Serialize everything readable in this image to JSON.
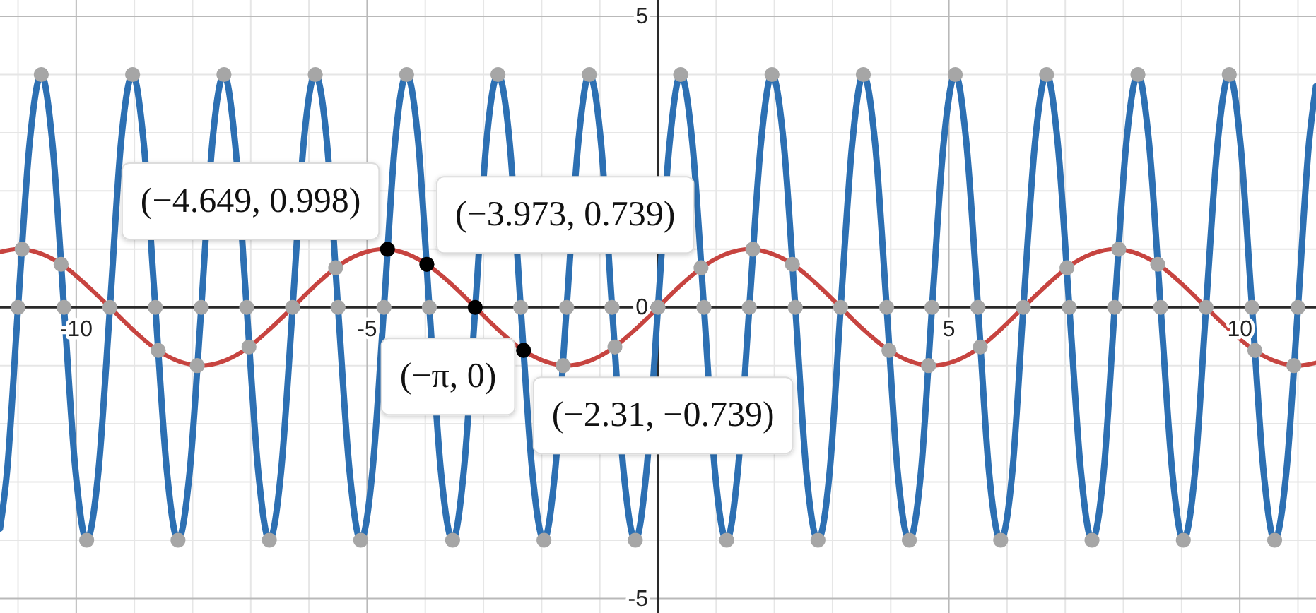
{
  "chart_data": {
    "type": "line",
    "xlim": [
      -11.31,
      11.31
    ],
    "ylim": [
      -5.25,
      5.28
    ],
    "xticks": [
      {
        "value": -11,
        "label": null
      },
      -10,
      {
        "value": -9,
        "label": null
      },
      {
        "value": -8,
        "label": null
      },
      {
        "value": -7,
        "label": null
      },
      {
        "value": -6,
        "label": null
      },
      -5,
      {
        "value": -4,
        "label": null
      },
      {
        "value": -3,
        "label": null
      },
      {
        "value": -2,
        "label": null
      },
      {
        "value": -1,
        "label": null
      },
      {
        "value": 0,
        "label": null
      },
      {
        "value": 1,
        "label": null
      },
      {
        "value": 2,
        "label": null
      },
      {
        "value": 3,
        "label": null
      },
      {
        "value": 4,
        "label": null
      },
      5,
      {
        "value": 6,
        "label": null
      },
      {
        "value": 7,
        "label": null
      },
      {
        "value": 8,
        "label": null
      },
      {
        "value": 9,
        "label": null
      },
      10,
      {
        "value": 11,
        "label": null
      }
    ],
    "yticks": [
      -5,
      {
        "value": -4,
        "label": null
      },
      {
        "value": -3,
        "label": null
      },
      {
        "value": -2,
        "label": null
      },
      {
        "value": -1,
        "label": null
      },
      0,
      {
        "value": 1,
        "label": null
      },
      {
        "value": 2,
        "label": null
      },
      {
        "value": 3,
        "label": null
      },
      {
        "value": 4,
        "label": null
      },
      5
    ],
    "grid": true,
    "series": [
      {
        "color": "#c74440",
        "x": [
          -11.31,
          -11.0,
          -10.6,
          -10.21,
          -9.82,
          -9.42,
          -9.03,
          -8.64,
          -8.25,
          -7.85,
          -7.46,
          -7.07,
          -6.68,
          -6.28,
          -5.89,
          -5.5,
          -5.11,
          -4.71,
          -4.32,
          -3.93,
          -3.53,
          -3.14,
          -2.75,
          -2.36,
          -1.96,
          -1.57,
          -1.18,
          -0.79,
          -0.39,
          0,
          0.39,
          0.79,
          1.18,
          1.57,
          1.96,
          2.36,
          2.75,
          3.14,
          3.53,
          3.93,
          4.32,
          4.71,
          5.11,
          5.5,
          5.89,
          6.28,
          6.68,
          7.07,
          7.46,
          7.85,
          8.25,
          8.64,
          9.03,
          9.42,
          9.82,
          10.21,
          10.6,
          11.0,
          11.31
        ],
        "values": [
          0.95,
          1,
          0.92,
          0.71,
          0.38,
          0,
          -0.38,
          -0.71,
          -0.92,
          -1,
          -0.92,
          -0.71,
          -0.38,
          0,
          0.38,
          0.71,
          0.92,
          1,
          0.92,
          0.71,
          0.38,
          0,
          -0.38,
          -0.71,
          -0.92,
          -1,
          -0.92,
          -0.71,
          -0.38,
          0,
          0.38,
          0.71,
          0.92,
          1,
          0.92,
          0.71,
          0.38,
          0,
          -0.38,
          -0.71,
          -0.92,
          -1,
          -0.92,
          -0.71,
          -0.38,
          0,
          0.38,
          0.71,
          0.92,
          1,
          0.92,
          0.71,
          0.38,
          0,
          -0.38,
          -0.71,
          -0.92,
          -1,
          -0.95
        ]
      },
      {
        "color": "#2d70b3",
        "x": [
          -11.31,
          -11.19,
          -11.0,
          -10.8,
          -10.6,
          -10.41,
          -10.21,
          -10.01,
          -9.82,
          -9.62,
          -9.42,
          -9.23,
          -9.03,
          -8.84,
          -8.64,
          -8.44,
          -8.25,
          -8.05,
          -7.85,
          -7.66,
          -7.46,
          -7.27,
          -7.07,
          -6.87,
          -6.68,
          -6.48,
          -6.28,
          -6.09,
          -5.89,
          -5.69,
          -5.5,
          -5.3,
          -5.11,
          -4.91,
          -4.71,
          -4.52,
          -4.32,
          -4.12,
          -3.93,
          -3.73,
          -3.53,
          -3.34,
          -3.14,
          -2.95,
          -2.75,
          -2.55,
          -2.36,
          -2.16,
          -1.96,
          -1.77,
          -1.57,
          -1.37,
          -1.18,
          -0.98,
          -0.79,
          -0.59,
          -0.39,
          -0.2,
          0,
          0.2,
          0.39,
          0.59,
          0.79,
          0.98,
          1.18,
          1.37,
          1.57,
          1.77,
          1.96,
          2.16,
          2.36,
          2.55,
          2.75,
          2.95,
          3.14,
          3.34,
          3.53,
          3.73,
          3.93,
          4.12,
          4.32,
          4.52,
          4.71,
          4.91,
          5.11,
          5.3,
          5.5,
          5.69,
          5.89,
          6.09,
          6.28,
          6.48,
          6.68,
          6.87,
          7.07,
          7.27,
          7.46,
          7.66,
          7.85,
          8.05,
          8.25,
          8.44,
          8.64,
          8.84,
          9.03,
          9.23,
          9.42,
          9.62,
          9.82,
          10.01,
          10.21,
          10.41,
          10.6,
          10.8,
          11.0,
          11.19,
          11.31
        ],
        "values": [
          -3.8,
          -2.83,
          0,
          2.83,
          4,
          2.83,
          0,
          -2.83,
          -4,
          -2.83,
          0,
          2.83,
          4,
          2.83,
          0,
          -2.83,
          -4,
          -2.83,
          0,
          2.83,
          4,
          2.83,
          0,
          -2.83,
          -4,
          -2.83,
          0,
          2.83,
          4,
          2.83,
          0,
          -2.83,
          -4,
          -2.83,
          0,
          2.83,
          4,
          2.83,
          0,
          -2.83,
          -4,
          -2.83,
          0,
          2.83,
          4,
          2.83,
          0,
          -2.83,
          -4,
          -2.83,
          0,
          2.83,
          4,
          2.83,
          0,
          -2.83,
          -4,
          -2.83,
          0,
          2.83,
          4,
          2.83,
          0,
          -2.83,
          -4,
          -2.83,
          0,
          2.83,
          4,
          2.83,
          0,
          -2.83,
          -4,
          -2.83,
          0,
          2.83,
          4,
          2.83,
          0,
          -2.83,
          -4,
          -2.83,
          0,
          2.83,
          4,
          2.83,
          0,
          -2.83,
          -4,
          -2.83,
          0,
          2.83,
          4,
          2.83,
          0,
          -2.83,
          -4,
          -2.83,
          0,
          2.83,
          4,
          2.83,
          0,
          -2.83,
          -4,
          -2.83,
          0,
          2.83,
          4,
          2.83,
          0,
          -2.83,
          -4,
          -2.83,
          0,
          2.83,
          3.8
        ]
      },
      {
        "type": "scatter",
        "marker": "circle",
        "color": "#a6a6a6",
        "x": [
          -11.0,
          -10.93,
          -10.6,
          -10.26,
          -10.21,
          -9.82,
          -9.42,
          -9.03,
          -8.64,
          -8.59,
          -8.25,
          -7.92,
          -7.85,
          -7.46,
          -7.07,
          -7.03,
          -6.68,
          -6.28,
          -5.89,
          -5.54,
          -5.5,
          -5.11,
          -4.71,
          -4.32,
          -3.93,
          -3.53,
          -2.75,
          -2.36,
          -1.96,
          -1.63,
          -1.57,
          -1.18,
          -0.79,
          -0.74,
          -0.39,
          0,
          0.39,
          0.74,
          0.79,
          1.18,
          1.57,
          1.63,
          1.96,
          2.31,
          2.36,
          2.75,
          3.14,
          3.53,
          3.93,
          3.97,
          4.32,
          4.65,
          4.71,
          5.11,
          5.5,
          5.54,
          5.89,
          6.28,
          6.68,
          7.03,
          7.07,
          7.46,
          7.85,
          7.92,
          8.25,
          8.59,
          8.64,
          9.03,
          9.42,
          9.82,
          10.21,
          10.26,
          10.6,
          10.93,
          11.0
        ],
        "values": [
          0,
          1.0,
          4,
          0.74,
          0,
          -4,
          0,
          4,
          0,
          -0.74,
          -4,
          -1.0,
          0,
          4,
          0,
          -0.68,
          -4,
          0,
          4,
          0.68,
          0,
          -4,
          0,
          4,
          0,
          -4,
          4,
          0,
          -4,
          -1.0,
          0,
          4,
          0,
          -0.68,
          -4,
          0,
          4,
          0.68,
          0,
          -4,
          0,
          1.0,
          4,
          0.74,
          0,
          -4,
          0,
          4,
          0,
          -0.74,
          -4,
          -1.0,
          0,
          4,
          0,
          -0.68,
          -4,
          0,
          4,
          0.68,
          0,
          -4,
          0,
          1.0,
          4,
          0.74,
          0,
          -4,
          0,
          4,
          0,
          -0.74,
          -4,
          -1.0,
          0
        ]
      },
      {
        "type": "scatter",
        "marker": "circle",
        "color": "#000000",
        "x": [
          -4.649,
          -3.973,
          -3.14159,
          -2.31
        ],
        "values": [
          0.998,
          0.739,
          0,
          -0.739
        ],
        "value_labels": [
          "(−4.649, 0.998)",
          "(−3.973, 0.739)",
          "(−π, 0)",
          "(−2.31, −0.739)"
        ]
      }
    ]
  }
}
